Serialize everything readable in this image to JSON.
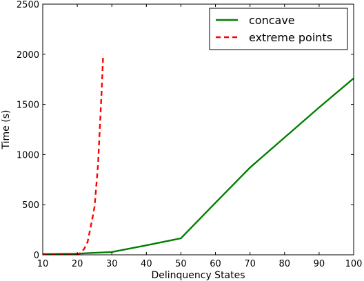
{
  "chart_data": {
    "type": "line",
    "title": "",
    "xlabel": "Delinquency States",
    "ylabel": "Time (s)",
    "xlim": [
      10,
      100
    ],
    "ylim": [
      0,
      2500
    ],
    "xticks": [
      "10",
      "20",
      "30",
      "40",
      "50",
      "60",
      "70",
      "80",
      "90",
      "100"
    ],
    "yticks": [
      "0",
      "500",
      "1000",
      "1500",
      "2000",
      "2500"
    ],
    "grid": false,
    "legend_position": "top-right",
    "series": [
      {
        "name": "concave",
        "color": "#007f00",
        "style": "solid",
        "x": [
          10,
          20,
          30,
          40,
          50,
          60,
          70,
          80,
          90,
          100
        ],
        "y": [
          8,
          12,
          28,
          95,
          165,
          520,
          870,
          1170,
          1470,
          1760
        ]
      },
      {
        "name": "extreme points",
        "color": "#ff0000",
        "style": "dashed",
        "x": [
          10,
          20,
          21,
          22,
          23,
          24,
          25,
          26,
          27,
          27.5
        ],
        "y": [
          0,
          5,
          20,
          60,
          130,
          300,
          480,
          900,
          1600,
          2000
        ]
      }
    ]
  }
}
